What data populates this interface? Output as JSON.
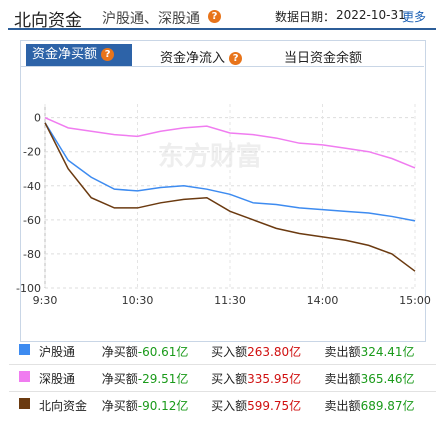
{
  "header": {
    "title": "北向资金",
    "subtitle": "沪股通、深股通",
    "help": "?",
    "date_label": "数据日期：",
    "date": "2022-10-31",
    "more": "更多"
  },
  "tabs": [
    {
      "label": "资金净买额",
      "help": "?"
    },
    {
      "label": "资金净流入",
      "help": "?"
    },
    {
      "label": "当日资金余额"
    }
  ],
  "watermark": "东方财富",
  "chart_data": {
    "type": "line",
    "categories": [
      "9:30",
      null,
      null,
      null,
      "10:30",
      null,
      null,
      null,
      "11:30",
      null,
      null,
      null,
      "14:00",
      null,
      null,
      null,
      "15:00"
    ],
    "series": [
      {
        "name": "沪股通",
        "color": "#3d8bf0",
        "values": [
          -3,
          -25,
          -35,
          -42,
          -43,
          -41,
          -40,
          -42,
          -45,
          -50,
          -51,
          -53,
          -54,
          -55,
          -56,
          -58,
          -60.61
        ]
      },
      {
        "name": "深股通",
        "color": "#f07cf0",
        "values": [
          0,
          -6,
          -8,
          -10,
          -11,
          -8,
          -6,
          -5,
          -9,
          -10,
          -12,
          -15,
          -16,
          -18,
          -20,
          -24,
          -29.51
        ]
      },
      {
        "name": "北向资金",
        "color": "#6b3a10",
        "values": [
          -3,
          -30,
          -47,
          -53,
          -53,
          -50,
          -48,
          -47,
          -55,
          -60,
          -65,
          -68,
          -70,
          -72,
          -75,
          -80,
          -90.12
        ]
      }
    ],
    "ylim": [
      -100,
      8
    ],
    "yticks": [
      0,
      -20,
      -40,
      -60,
      -80,
      -100
    ],
    "grid": true
  },
  "legend": {
    "rows": [
      {
        "net_label": "净买额",
        "net": "-60.61亿",
        "buy_label": "买入额",
        "buy": "263.80亿",
        "sell_label": "卖出额",
        "sell": "324.41亿"
      },
      {
        "net_label": "净买额",
        "net": "-29.51亿",
        "buy_label": "买入额",
        "buy": "335.95亿",
        "sell_label": "卖出额",
        "sell": "365.46亿"
      },
      {
        "net_label": "净买额",
        "net": "-90.12亿",
        "buy_label": "买入额",
        "buy": "599.75亿",
        "sell_label": "卖出额",
        "sell": "689.87亿"
      }
    ]
  }
}
